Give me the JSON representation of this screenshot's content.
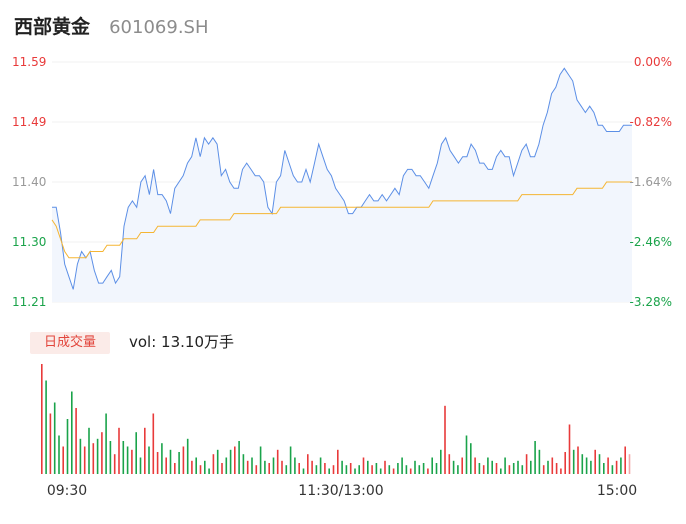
{
  "header": {
    "name": "西部黄金",
    "code": "601069.SH"
  },
  "volume": {
    "badge": "日成交量",
    "label": "vol: 13.10万手"
  },
  "colors": {
    "up": "#e83a3a",
    "down": "#1aa34a",
    "neutral": "#999999",
    "price": "#5c8fe6",
    "avg": "#f5b533",
    "fill": "#f2f6fd"
  },
  "chart_data": {
    "type": "line",
    "price_axis": {
      "ticks": [
        "11.59",
        "11.49",
        "11.40",
        "11.30",
        "11.21"
      ],
      "ylim": [
        11.21,
        11.59
      ]
    },
    "pct_axis": {
      "ticks": [
        "0.00%",
        "-0.82%",
        "-1.64%",
        "-2.46%",
        "-3.28%"
      ]
    },
    "x_ticks": [
      "09:30",
      "11:30/13:00",
      "15:00"
    ],
    "series": [
      {
        "values": [
          11.36,
          11.36,
          11.32,
          11.27,
          11.25,
          11.23,
          11.27,
          11.29,
          11.28,
          11.29,
          11.26,
          11.24,
          11.24,
          11.25,
          11.26,
          11.24,
          11.25,
          11.33,
          11.36,
          11.37,
          11.36,
          11.4,
          11.41,
          11.38,
          11.42,
          11.38,
          11.38,
          11.37,
          11.35,
          11.39,
          11.4,
          11.41,
          11.43,
          11.44,
          11.47,
          11.44,
          11.47,
          11.46,
          11.47,
          11.46,
          11.41,
          11.42,
          11.4,
          11.39,
          11.39,
          11.42,
          11.43,
          11.42,
          11.41,
          11.41,
          11.4,
          11.36,
          11.35,
          11.4,
          11.41,
          11.45,
          11.43,
          11.41,
          11.4,
          11.4,
          11.42,
          11.4,
          11.43,
          11.46,
          11.44,
          11.42,
          11.41,
          11.39,
          11.38,
          11.37,
          11.35,
          11.35,
          11.36,
          11.36,
          11.37,
          11.38,
          11.37,
          11.37,
          11.38,
          11.37,
          11.38,
          11.39,
          11.38,
          11.41,
          11.42,
          11.42,
          11.41,
          11.41,
          11.4,
          11.39,
          11.41,
          11.43,
          11.46,
          11.47,
          11.45,
          11.44,
          11.43,
          11.44,
          11.44,
          11.46,
          11.45,
          11.43,
          11.43,
          11.42,
          11.42,
          11.44,
          11.45,
          11.44,
          11.44,
          11.41,
          11.43,
          11.45,
          11.46,
          11.44,
          11.44,
          11.46,
          11.49,
          11.51,
          11.54,
          11.55,
          11.57,
          11.58,
          11.57,
          11.56,
          11.53,
          11.52,
          11.51,
          11.52,
          11.51,
          11.49,
          11.49,
          11.48,
          11.48,
          11.48,
          11.48,
          11.49,
          11.49,
          11.49
        ]
      },
      {
        "values": [
          11.34,
          11.33,
          11.31,
          11.29,
          11.28,
          11.28,
          11.28,
          11.28,
          11.28,
          11.29,
          11.29,
          11.29,
          11.29,
          11.3,
          11.3,
          11.3,
          11.3,
          11.31,
          11.31,
          11.31,
          11.31,
          11.32,
          11.32,
          11.32,
          11.32,
          11.33,
          11.33,
          11.33,
          11.33,
          11.33,
          11.33,
          11.33,
          11.33,
          11.33,
          11.33,
          11.34,
          11.34,
          11.34,
          11.34,
          11.34,
          11.34,
          11.34,
          11.34,
          11.35,
          11.35,
          11.35,
          11.35,
          11.35,
          11.35,
          11.35,
          11.35,
          11.35,
          11.35,
          11.35,
          11.36,
          11.36,
          11.36,
          11.36,
          11.36,
          11.36,
          11.36,
          11.36,
          11.36,
          11.36,
          11.36,
          11.36,
          11.36,
          11.36,
          11.36,
          11.36,
          11.36,
          11.36,
          11.36,
          11.36,
          11.36,
          11.36,
          11.36,
          11.36,
          11.36,
          11.36,
          11.36,
          11.36,
          11.36,
          11.36,
          11.36,
          11.36,
          11.36,
          11.36,
          11.36,
          11.36,
          11.37,
          11.37,
          11.37,
          11.37,
          11.37,
          11.37,
          11.37,
          11.37,
          11.37,
          11.37,
          11.37,
          11.37,
          11.37,
          11.37,
          11.37,
          11.37,
          11.37,
          11.37,
          11.37,
          11.37,
          11.37,
          11.38,
          11.38,
          11.38,
          11.38,
          11.38,
          11.38,
          11.38,
          11.38,
          11.38,
          11.38,
          11.38,
          11.38,
          11.38,
          11.39,
          11.39,
          11.39,
          11.39,
          11.39,
          11.39,
          11.39,
          11.4,
          11.4,
          11.4,
          11.4,
          11.4,
          11.4,
          11.4
        ]
      }
    ],
    "volume_values": [
      100,
      85,
      55,
      65,
      35,
      25,
      50,
      75,
      60,
      32,
      25,
      42,
      28,
      32,
      38,
      55,
      30,
      18,
      42,
      30,
      25,
      22,
      38,
      15,
      42,
      25,
      55,
      20,
      28,
      15,
      22,
      10,
      20,
      25,
      32,
      12,
      15,
      8,
      12,
      5,
      18,
      22,
      10,
      15,
      22,
      25,
      30,
      18,
      12,
      15,
      8,
      25,
      12,
      10,
      15,
      22,
      12,
      8,
      25,
      15,
      10,
      5,
      18,
      12,
      8,
      15,
      10,
      5,
      8,
      22,
      12,
      8,
      10,
      5,
      8,
      15,
      12,
      8,
      10,
      5,
      12,
      8,
      5,
      10,
      15,
      8,
      5,
      12,
      8,
      10,
      5,
      15,
      10,
      22,
      62,
      18,
      12,
      8,
      15,
      35,
      28,
      15,
      10,
      8,
      15,
      12,
      10,
      5,
      15,
      8,
      10,
      12,
      8,
      18,
      12,
      30,
      22,
      8,
      12,
      15,
      10,
      5,
      20,
      45,
      22,
      25,
      18,
      15,
      12,
      22,
      18,
      10,
      15,
      8,
      12,
      15,
      25,
      18
    ],
    "volume_up": [
      1,
      0,
      1,
      0,
      0,
      1,
      0,
      0,
      1,
      0,
      1,
      0,
      1,
      0,
      1,
      0,
      0,
      1,
      1,
      0,
      0,
      1,
      0,
      0,
      1,
      0,
      1,
      1,
      0,
      1,
      0,
      1,
      0,
      1,
      0,
      1,
      0,
      1,
      0,
      0,
      1,
      0,
      1,
      0,
      0,
      1,
      0,
      0,
      1,
      0,
      1,
      0,
      0,
      1,
      0,
      1,
      1,
      0,
      0,
      0,
      1,
      0,
      1,
      1,
      0,
      0,
      1,
      0,
      1,
      1,
      0,
      0,
      1,
      0,
      0,
      1,
      0,
      1,
      0,
      0,
      1,
      0,
      1,
      0,
      0,
      0,
      1,
      0,
      0,
      0,
      1,
      0,
      0,
      0,
      1,
      1,
      0,
      0,
      1,
      0,
      0,
      1,
      0,
      1,
      0,
      0,
      1,
      0,
      0,
      1,
      0,
      0,
      0,
      1,
      0,
      0,
      0,
      1,
      0,
      1,
      1,
      1,
      1,
      1,
      0,
      1,
      0,
      0,
      0,
      1,
      0,
      0,
      1,
      0,
      1,
      0,
      1,
      1
    ]
  }
}
